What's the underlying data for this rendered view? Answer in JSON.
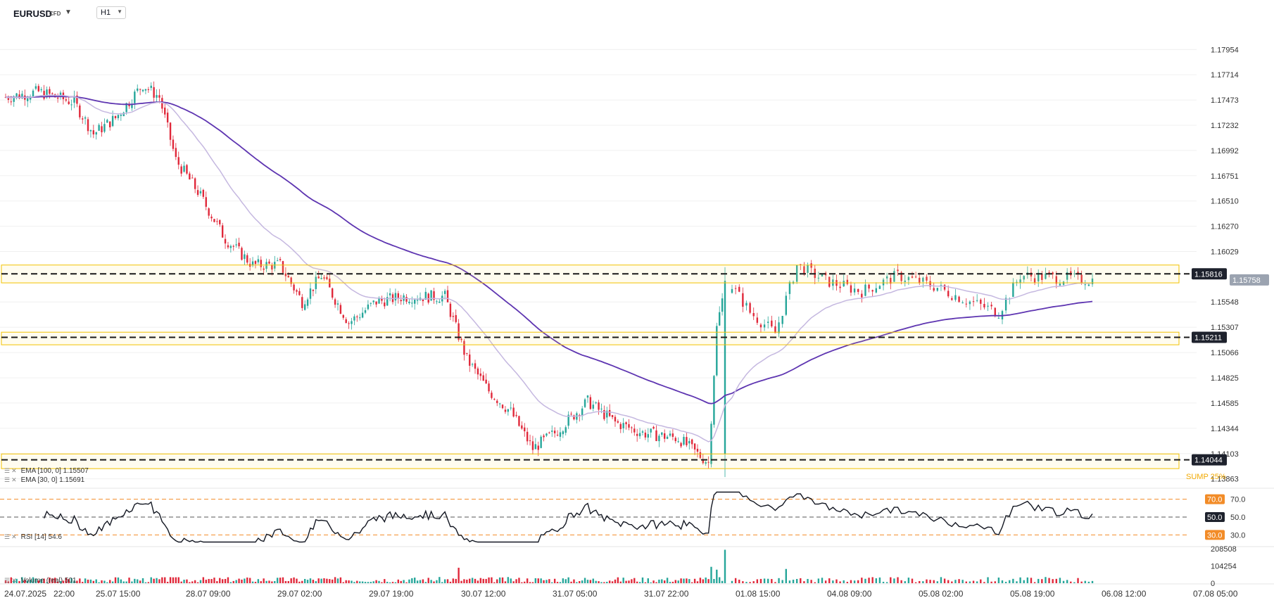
{
  "toolbar": {
    "symbol": "EURUSD",
    "symbol_badge": "CFD",
    "timeframe": "H1"
  },
  "legends": {
    "ema100": "EMA [100, 0] 1.15507",
    "ema30": "EMA [30, 0] 1.15691",
    "rsi": "RSI [14] 54.6",
    "volume": "Volume (real) 501"
  },
  "colors": {
    "up": "#26a69a",
    "down": "#e0283a",
    "ema100": "#5e35b1",
    "ema30": "#c5b8e0",
    "zone_border": "#f2c200",
    "rsi_levels": "#f28c28",
    "rsi_line": "#131722"
  },
  "chart_data": [
    {
      "type": "candlestick",
      "name": "EURUSD H1",
      "x_tick_labels": [
        "24.07.2025",
        "22:00",
        "25.07 15:00",
        "28.07 09:00",
        "29.07 02:00",
        "29.07 19:00",
        "30.07 12:00",
        "31.07 05:00",
        "31.07 22:00",
        "01.08 15:00",
        "04.08 09:00",
        "05.08 02:00",
        "05.08 19:00",
        "06.08 12:00",
        "07.08 05:00"
      ],
      "y_tick_labels": [
        "1.17954",
        "1.17714",
        "1.17473",
        "1.17232",
        "1.16992",
        "1.16751",
        "1.16510",
        "1.16270",
        "1.16029",
        "1.15548",
        "1.15307",
        "1.15066",
        "1.14825",
        "1.14585",
        "1.14344",
        "1.14103",
        "1.13863"
      ],
      "ylim": [
        1.138,
        1.1805
      ],
      "grid": true,
      "last_price": "1.15758",
      "horizontal_levels": [
        {
          "price": 1.15816,
          "label": "1.15816",
          "zone": [
            1.1573,
            1.159
          ]
        },
        {
          "price": 1.15211,
          "label": "1.15211",
          "zone": [
            1.1514,
            1.1526
          ]
        },
        {
          "price": 1.14044,
          "label": "1.14044",
          "zone": [
            1.1396,
            1.141
          ]
        }
      ],
      "partial_label": "SUMP 25%",
      "key_values": {
        "start_close": 1.175,
        "pre_drop_high": 1.1774,
        "drop_low": 1.1402,
        "spike_high": 1.1588,
        "end_close": 1.15758
      },
      "ema30_last": 1.15691,
      "ema100_last": 1.15507
    },
    {
      "type": "line",
      "name": "RSI [14]",
      "levels": [
        70.0,
        50.0,
        30.0
      ],
      "level_labels": [
        "70.0",
        "50.0",
        "30.0"
      ],
      "ylim": [
        20,
        80
      ],
      "last": 54.6
    },
    {
      "type": "bar",
      "name": "Volume (real)",
      "y_tick_labels": [
        "208508",
        "104254",
        "0"
      ],
      "ylim": [
        0,
        208508
      ],
      "last": 501
    }
  ]
}
